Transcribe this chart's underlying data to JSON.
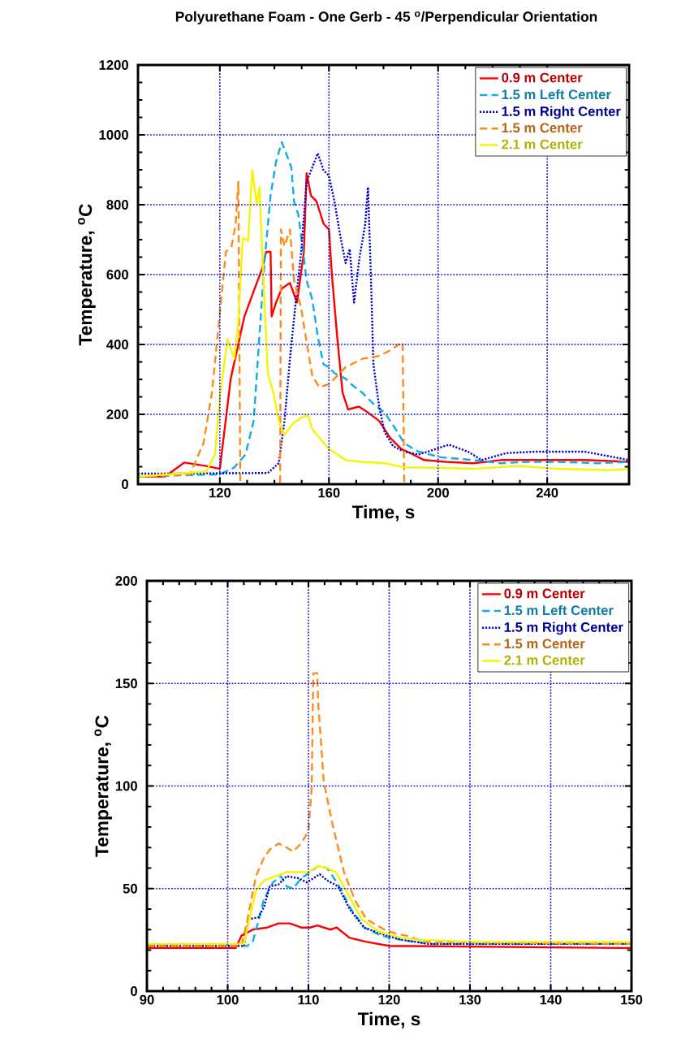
{
  "chart_data": [
    {
      "type": "line",
      "title": "Polyurethane Foam - One Gerb - 45 $^{o}$/Perpendicular Orientation",
      "xlabel": "Time, s",
      "ylabel": "Temperature, $^{o}$C",
      "xlim": [
        90,
        270
      ],
      "ylim": [
        0,
        1200
      ],
      "xticks": [
        120,
        160,
        200,
        240
      ],
      "yticks": [
        0,
        200,
        400,
        600,
        800,
        1000,
        1200
      ],
      "grid": true,
      "legend": "top right",
      "marker": "none",
      "series": [
        {
          "name": "0.9 m Center",
          "color": "#ff0000",
          "line_style": "solid",
          "x": [
            90,
            100,
            107,
            115,
            120,
            124,
            129,
            132.4,
            135.5,
            137,
            138.6,
            139,
            140.6,
            142.7,
            145.7,
            148.3,
            150.8,
            151.8,
            153.4,
            155.4,
            158,
            160,
            161,
            163,
            165,
            167,
            171,
            174.3,
            178.4,
            182.4,
            186.5,
            188.8,
            194.9,
            203,
            213,
            223,
            233.5,
            243.7,
            253.8,
            270
          ],
          "values": [
            22,
            22,
            62,
            52,
            44,
            302,
            480,
            552,
            617,
            665,
            665,
            480,
            520,
            560,
            576,
            520,
            665,
            890,
            826,
            810,
            746,
            729,
            608,
            423,
            262,
            214,
            222,
            205,
            181,
            133,
            101,
            93,
            69,
            64,
            60,
            69,
            69,
            69,
            69,
            64
          ]
        },
        {
          "name": "1.5 m Left Center",
          "color": "#11aee6",
          "line_style": "dashed",
          "x": [
            90,
            120,
            125.3,
            129.4,
            132.4,
            134.5,
            136.5,
            138.6,
            140.6,
            142.7,
            144.7,
            146.2,
            147.2,
            148.8,
            150.8,
            151.8,
            153.9,
            155.9,
            158,
            160,
            162,
            166.1,
            168.2,
            172.2,
            176.3,
            180.4,
            184.5,
            187.6,
            192.9,
            201,
            213,
            223,
            233.5,
            243.7,
            259,
            270
          ],
          "values": [
            22,
            28,
            48,
            85,
            181,
            423,
            649,
            826,
            923,
            979,
            939,
            907,
            810,
            770,
            649,
            584,
            528,
            423,
            343,
            335,
            318,
            302,
            286,
            262,
            230,
            205,
            157,
            117,
            93,
            77,
            69,
            60,
            64,
            64,
            60,
            64
          ]
        },
        {
          "name": "1.5 m Right Center",
          "color": "#0000cc",
          "line_style": "dotted",
          "x": [
            90,
            137.6,
            141.6,
            143.7,
            145.7,
            147.8,
            149.8,
            151.8,
            153.9,
            155.9,
            158,
            160,
            162,
            164.1,
            166.1,
            167.6,
            169.2,
            171.2,
            173.3,
            174.3,
            175.3,
            176.3,
            178.4,
            180.4,
            183.5,
            187.6,
            192.9,
            204,
            211,
            216,
            225,
            235.5,
            243.7,
            253.8,
            270
          ],
          "values": [
            30,
            32,
            60,
            181,
            359,
            520,
            665,
            866,
            907,
            947,
            899,
            883,
            810,
            713,
            633,
            673,
            520,
            649,
            745,
            850,
            617,
            343,
            222,
            149,
            109,
            93,
            85,
            113,
            93,
            69,
            89,
            93,
            93,
            93,
            69
          ]
        },
        {
          "name": "1.5 m Center",
          "color": "#ff8c1a",
          "line_style": "dashed",
          "x": [
            90,
            109,
            114,
            117.1,
            120.2,
            122.2,
            124.3,
            125.8,
            126.8,
            127.5,
            135,
            142.1,
            142.4,
            143.7,
            145.7,
            147.2,
            149.8,
            151.8,
            153.9,
            156.4,
            160,
            166.1,
            172.2,
            178.4,
            182.4,
            187,
            187.6
          ],
          "values": [
            22,
            28,
            117,
            262,
            504,
            665,
            681,
            745,
            866,
            4,
            null,
            4,
            729,
            681,
            729,
            584,
            504,
            407,
            310,
            278,
            286,
            335,
            359,
            367,
            383,
            407,
            4
          ]
        },
        {
          "name": "2.1 m Center",
          "color": "#f5f500",
          "line_style": "solid",
          "x": [
            90,
            115,
            118.2,
            120.2,
            122.8,
            125.3,
            126.8,
            128.4,
            130.4,
            131.9,
            133.5,
            134.5,
            136,
            137.6,
            139.6,
            141.6,
            143.7,
            146.7,
            149.8,
            152.3,
            153.9,
            160,
            166.1,
            172.2,
            180.4,
            187.6,
            192.9,
            213,
            229.4,
            243.7,
            263,
            270
          ],
          "values": [
            22,
            36,
            85,
            262,
            415,
            359,
            463,
            705,
            697,
            899,
            802,
            850,
            584,
            318,
            262,
            181,
            141,
            173,
            190,
            198,
            157,
            101,
            69,
            64,
            60,
            48,
            48,
            44,
            52,
            44,
            40,
            44
          ]
        }
      ]
    },
    {
      "type": "line",
      "xlabel": "Time, s",
      "ylabel": "Temperature, $^{o}$C",
      "xlim": [
        90,
        150
      ],
      "ylim": [
        0,
        200
      ],
      "xticks": [
        90,
        100,
        110,
        120,
        130,
        140,
        150
      ],
      "yticks": [
        0,
        50,
        100,
        150,
        200
      ],
      "grid": true,
      "legend": "top right",
      "marker": "none",
      "series": [
        {
          "name": "0.9 m Center",
          "color": "#ff0000",
          "line_style": "solid",
          "x": [
            90,
            101,
            101.7,
            103.1,
            104.9,
            106.3,
            107.7,
            109.1,
            110.2,
            111.1,
            112.7,
            113.5,
            115.1,
            117.2,
            120.1,
            122.2,
            150
          ],
          "values": [
            21,
            21,
            27,
            30,
            31,
            33,
            33,
            31,
            31,
            32,
            30,
            31,
            26,
            24,
            22,
            22,
            21
          ]
        },
        {
          "name": "1.5 m Left Center",
          "color": "#11aee6",
          "line_style": "dashed",
          "x": [
            90,
            102.4,
            103.1,
            103.8,
            104.5,
            105.6,
            106.6,
            107.3,
            108.1,
            109.1,
            110.2,
            111.2,
            112.3,
            113.7,
            115.1,
            116.9,
            119,
            121.5,
            125,
            150
          ],
          "values": [
            22,
            22,
            24,
            34,
            45,
            53,
            56,
            51,
            50,
            55,
            58,
            61,
            60,
            52,
            41,
            31,
            27,
            25,
            23,
            23
          ]
        },
        {
          "name": "1.5 m Right Center",
          "color": "#0000cc",
          "line_style": "dotted",
          "x": [
            90,
            102,
            102.6,
            103.8,
            104.5,
            105.2,
            106.3,
            107.3,
            108.8,
            109.8,
            111.4,
            112.3,
            113.7,
            115.1,
            116.9,
            119,
            121.5,
            125,
            150
          ],
          "values": [
            22,
            22,
            35,
            36,
            41,
            51,
            52,
            56,
            55,
            53,
            57,
            54,
            51,
            40,
            31,
            28,
            25,
            23,
            23
          ]
        },
        {
          "name": "1.5 m Center",
          "color": "#ff8c1a",
          "line_style": "dashed",
          "x": [
            90,
            101.7,
            102.4,
            103.5,
            104.5,
            105.2,
            106.3,
            107.3,
            108.1,
            109.1,
            110,
            110.4,
            110.6,
            111.1,
            111.2,
            111.9,
            113,
            114.4,
            115.8,
            117.2,
            119.4,
            120.9,
            122.2,
            124.4,
            150
          ],
          "values": [
            22,
            22,
            34,
            56,
            65,
            69,
            72,
            70,
            68,
            72,
            78,
            99,
            155,
            155,
            141,
            102,
            81,
            58,
            44,
            35,
            30,
            28,
            27,
            24,
            23
          ]
        },
        {
          "name": "2.1 m Center",
          "color": "#f5f500",
          "line_style": "solid",
          "x": [
            90,
            102,
            102.8,
            103.5,
            104.5,
            105.9,
            107.3,
            108.8,
            110,
            111.2,
            112.3,
            113.4,
            114.8,
            116.6,
            118.7,
            121.5,
            123.7,
            130.7,
            150
          ],
          "values": [
            23,
            23,
            37,
            49,
            54,
            56,
            58,
            58,
            58,
            61,
            60,
            58,
            48,
            35,
            29,
            26,
            25,
            24,
            24
          ]
        }
      ]
    }
  ]
}
